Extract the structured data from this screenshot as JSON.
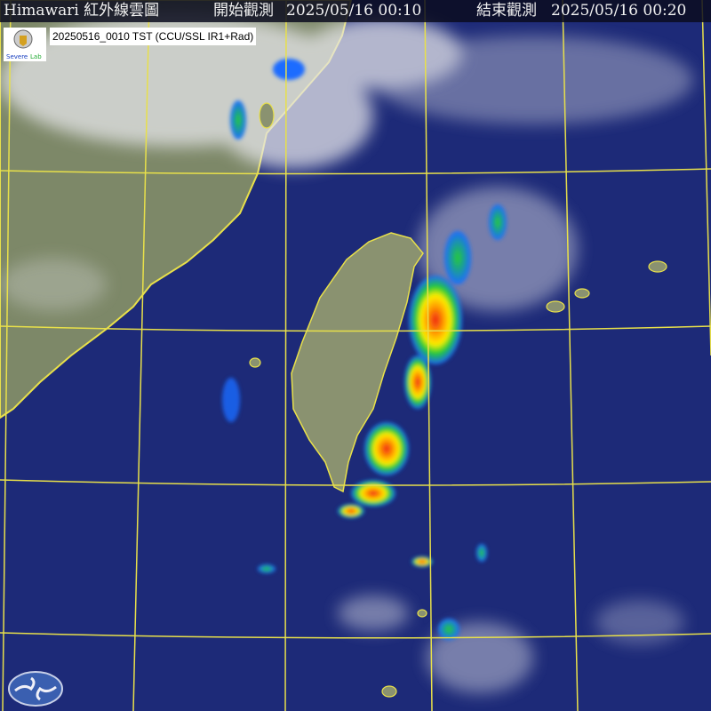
{
  "header": {
    "title": "Himawari 紅外線雲圖",
    "start_label": "開始觀測",
    "start_time": "2025/05/16 00:10",
    "end_label": "結束觀測",
    "end_time": "2025/05/16 00:20"
  },
  "caption": {
    "text": "20250516_0010 TST (CCU/SSL IR1+Rad)",
    "logo_text": "Severe Storm Lab"
  },
  "colors": {
    "ocean": "#1d2a78",
    "land": "#7d8868",
    "grid": "#e8e04a",
    "coast": "#e8e04a",
    "cloud": "#e6e6ea",
    "radar_low": "#1a6cff",
    "radar_mid": "#22cc33",
    "radar_high": "#ffee00",
    "radar_max": "#ee2211"
  },
  "icons": {
    "bottom_logo": "cwa-logo-icon",
    "top_logo": "ssl-logo-icon"
  }
}
